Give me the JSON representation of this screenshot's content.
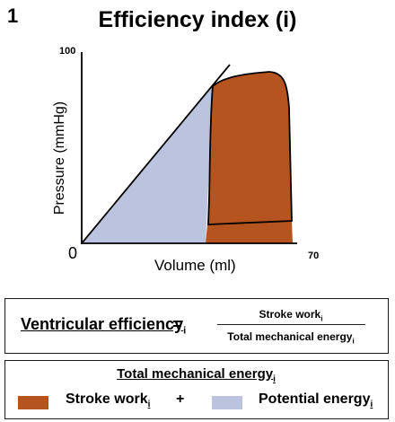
{
  "figure": {
    "number": "1",
    "title": "Efficiency index (i)"
  },
  "plot": {
    "ylabel": "Pressure (mmHg)",
    "xlabel": "Volume  (ml)",
    "y_max_label": "100",
    "x_max_label": "70",
    "origin_label": "0",
    "colors": {
      "stroke_work": "#b5541e",
      "potential_energy": "#bcc3de"
    }
  },
  "equation": {
    "lhs": "Ventricular efficiency",
    "lhs_sub": "i",
    "equals": "=",
    "numerator": "Stroke work",
    "numerator_sub": "i",
    "denominator": "Total mechanical energy",
    "denominator_sub": "i"
  },
  "legend": {
    "title": "Total mechanical energy",
    "title_sub": "i",
    "items": [
      {
        "label": "Stroke work",
        "sub": "i",
        "color": "#b5541e"
      },
      {
        "label": "Potential energy",
        "sub": "i",
        "color": "#bcc3de"
      }
    ],
    "operator": "+"
  }
}
